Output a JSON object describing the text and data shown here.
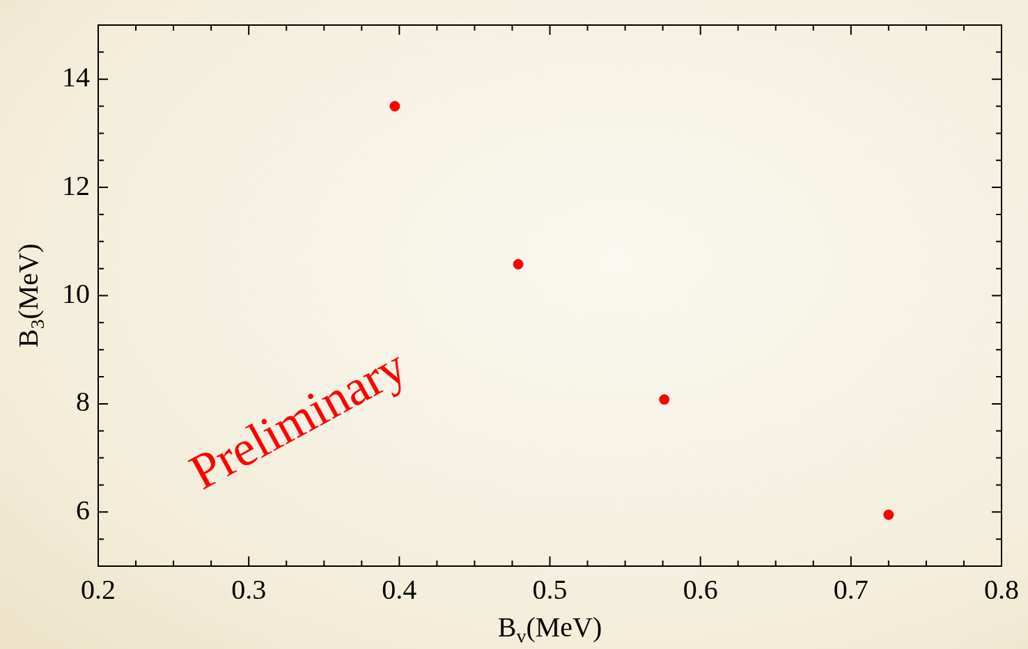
{
  "chart_data": {
    "type": "scatter",
    "xlabel": "B$_{v}$(MeV)",
    "ylabel": "B$_{3}$(MeV)",
    "x": [
      0.397,
      0.479,
      0.576,
      0.725
    ],
    "series": [
      {
        "color": "#ff0000",
        "values": [
          13.5,
          10.58,
          8.08,
          5.95
        ]
      }
    ],
    "marker": "circle",
    "grid": false,
    "legend": false,
    "xlim": [
      0.2,
      0.8
    ],
    "xticks": [
      0.2,
      {
        "value": 0.225,
        "label": null
      },
      {
        "value": 0.25,
        "label": null
      },
      {
        "value": 0.275,
        "label": null
      },
      0.3,
      {
        "value": 0.325,
        "label": null
      },
      {
        "value": 0.35,
        "label": null
      },
      {
        "value": 0.375,
        "label": null
      },
      0.4,
      {
        "value": 0.425,
        "label": null
      },
      {
        "value": 0.45,
        "label": null
      },
      {
        "value": 0.475,
        "label": null
      },
      0.5,
      {
        "value": 0.525,
        "label": null
      },
      {
        "value": 0.55,
        "label": null
      },
      {
        "value": 0.575,
        "label": null
      },
      0.6,
      {
        "value": 0.625,
        "label": null
      },
      {
        "value": 0.65,
        "label": null
      },
      {
        "value": 0.675,
        "label": null
      },
      0.7,
      {
        "value": 0.725,
        "label": null
      },
      {
        "value": 0.75,
        "label": null
      },
      {
        "value": 0.775,
        "label": null
      },
      0.8
    ],
    "ylim": [
      5,
      15
    ],
    "yticks": [
      {
        "value": 5.5,
        "label": null
      },
      6,
      {
        "value": 6.5,
        "label": null
      },
      {
        "value": 7,
        "label": null
      },
      {
        "value": 7.5,
        "label": null
      },
      8,
      {
        "value": 8.5,
        "label": null
      },
      {
        "value": 9,
        "label": null
      },
      {
        "value": 9.5,
        "label": null
      },
      10,
      {
        "value": 10.5,
        "label": null
      },
      {
        "value": 11,
        "label": null
      },
      {
        "value": 11.5,
        "label": null
      },
      12,
      {
        "value": 12.5,
        "label": null
      },
      {
        "value": 13,
        "label": null
      },
      {
        "value": 13.5,
        "label": null
      },
      14,
      {
        "value": 14.5,
        "label": null
      }
    ],
    "annotations": [
      "Preliminary"
    ]
  }
}
